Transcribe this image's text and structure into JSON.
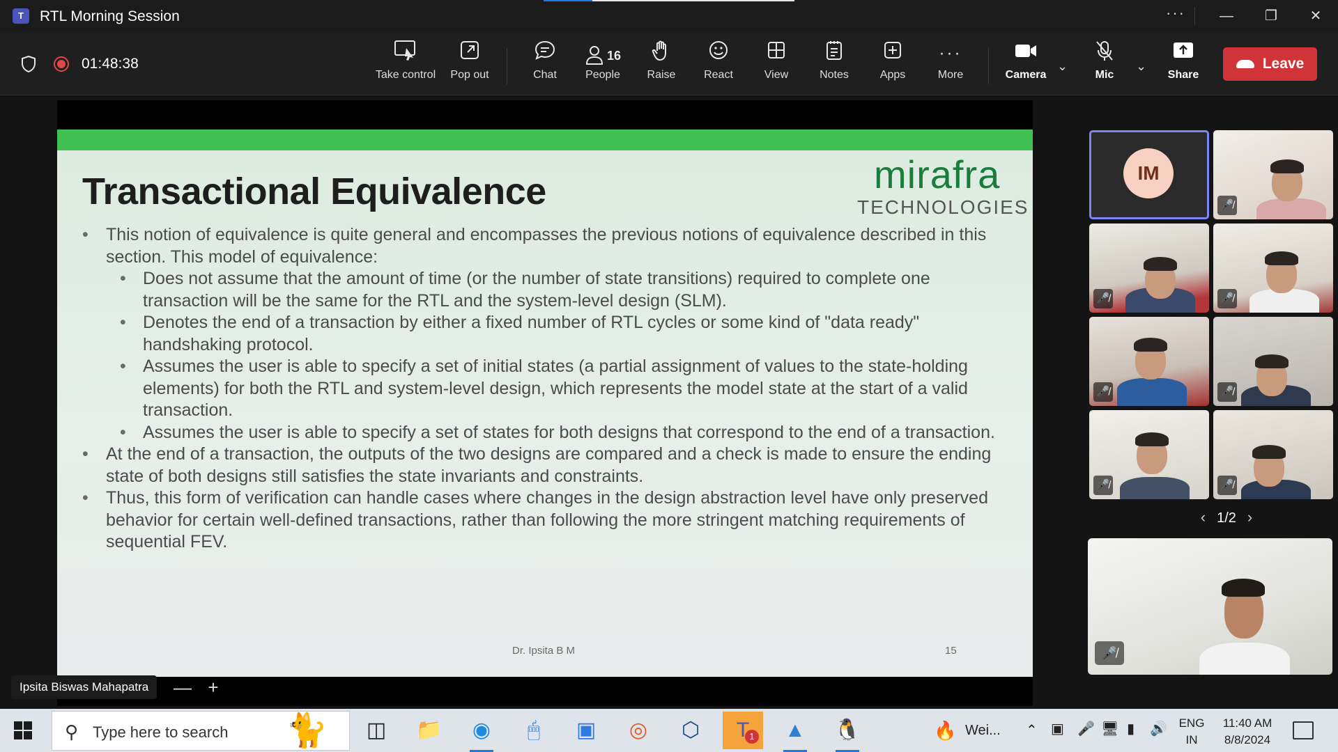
{
  "window": {
    "title": "RTL Morning Session",
    "app_icon": "teams-icon",
    "more_label": "···"
  },
  "toolbar": {
    "timer": "01:48:38",
    "take_control": "Take control",
    "pop_out": "Pop out",
    "chat": "Chat",
    "people": "People",
    "people_count": "16",
    "raise": "Raise",
    "react": "React",
    "view": "View",
    "notes": "Notes",
    "apps": "Apps",
    "more": "More",
    "camera": "Camera",
    "mic": "Mic",
    "share": "Share",
    "leave": "Leave"
  },
  "slide": {
    "heading": "Transactional Equivalence",
    "brand_name": "mirafra",
    "brand_sub": "TECHNOLOGIES",
    "b1": "This notion of equivalence is quite general and encompasses the previous notions of equivalence described in this section. This model of equivalence:",
    "s1": "Does not assume that the amount of time (or the number of state transitions) required to complete one transaction will be the same for the RTL and the system-level design (SLM).",
    "s2": "Denotes the end of a transaction by either a fixed number of RTL cycles or some kind of \"data ready\" handshaking protocol.",
    "s3": "Assumes the user is able to specify a set of initial states (a partial assignment of values to the state-holding elements) for both the RTL and system-level design, which represents the model state at the start of a valid transaction.",
    "s4": "Assumes the user is able to specify a set of states for both designs that correspond to the end of a transaction.",
    "b2": "At the end of a transaction, the outputs of the two designs are compared and a check is made to ensure the ending state of both designs still satisfies the state invariants and constraints.",
    "b3": "Thus, this form of verification can handle cases where changes in the design abstraction level have only preserved behavior for certain well-defined transactions, rather than following the more stringent matching requirements of sequential FEV.",
    "footer_author": "Dr. Ipsita B M",
    "footer_page": "15"
  },
  "stage": {
    "presenter": "Ipsita Biswas Mahapatra",
    "zoom_out": "—",
    "zoom_in": "+"
  },
  "gallery": {
    "avatar_initials": "IM",
    "page": "1/2",
    "prev": "‹",
    "next": "›"
  },
  "taskbar": {
    "search_placeholder": "Type here to search",
    "weather": "Wei...",
    "lang_top": "ENG",
    "lang_bottom": "IN",
    "time": "11:40 AM",
    "date": "8/8/2024",
    "teams_badge": "1"
  },
  "colors": {
    "leave": "#d13438",
    "slide_band": "#41c154",
    "brand": "#1a7d3c",
    "speaker_outline": "#7f85f5"
  }
}
